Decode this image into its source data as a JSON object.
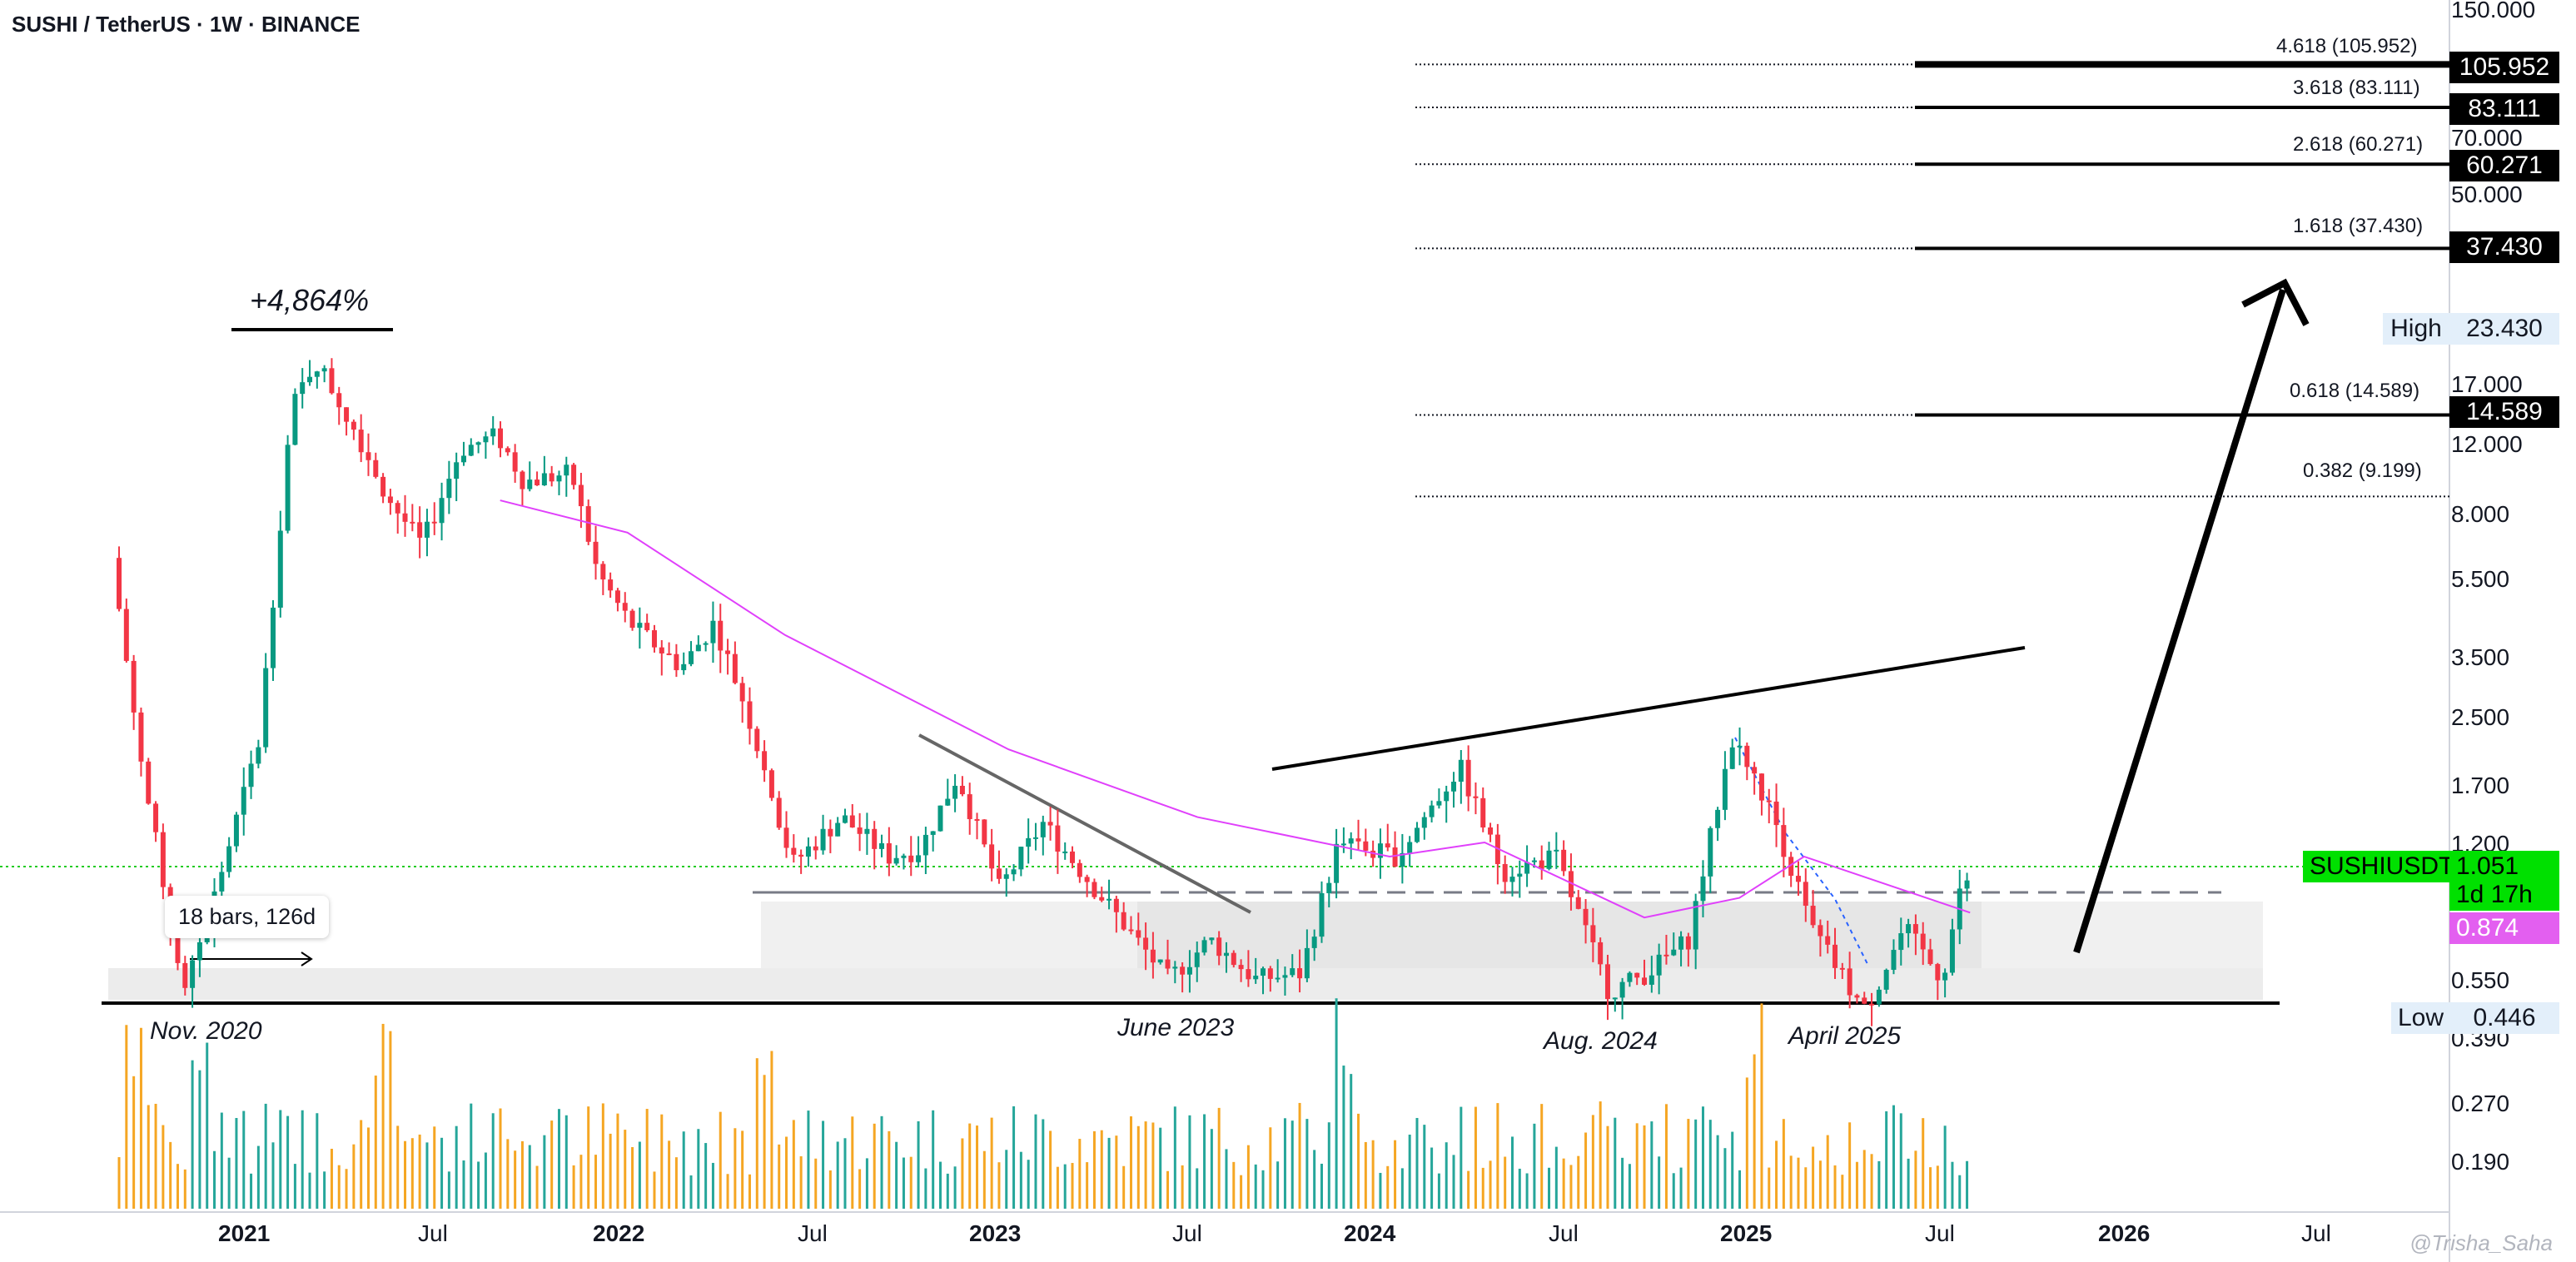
{
  "header": {
    "symbol": "SUSHI / TetherUS · 1W · BINANCE"
  },
  "annotations": {
    "gain": "+4,864%",
    "bars_callout": "18 bars, 126d",
    "nov_2020": "Nov. 2020",
    "june_2023": "June 2023",
    "aug_2024": "Aug. 2024",
    "april_2025": "April 2025"
  },
  "fib_levels": [
    {
      "label": "4.618 (105.952)",
      "tag": "105.952"
    },
    {
      "label": "3.618 (83.111)",
      "tag": "83.111"
    },
    {
      "label": "2.618 (60.271)",
      "tag": "60.271"
    },
    {
      "label": "1.618 (37.430)",
      "tag": "37.430"
    },
    {
      "label": "0.618 (14.589)",
      "tag": "14.589"
    },
    {
      "label": "0.382 (9.199)",
      "tag": ""
    }
  ],
  "price_tags": {
    "high_label": "High",
    "high_value": "23.430",
    "low_label": "Low",
    "low_value": "0.446",
    "symbol_tag": "SUSHIUSDT",
    "last_price": "1.051",
    "countdown": "1d 17h",
    "ma_value": "0.874"
  },
  "watermark": "@Trisha_Saha",
  "colors": {
    "up": "#089981",
    "down": "#f23645",
    "ma": "#e040fb",
    "vol_up": "#26a69a",
    "vol_down": "#f5a623",
    "last_price_bg": "#00e000"
  },
  "chart_data": {
    "type": "candlestick",
    "title": "SUSHI / TetherUS · 1W · BINANCE",
    "scale": "log",
    "y_ticks": [
      "150.000",
      "70.000",
      "50.000",
      "17.000",
      "12.000",
      "8.000",
      "5.500",
      "3.500",
      "2.500",
      "1.700",
      "1.200",
      "0.550",
      "0.390",
      "0.270",
      "0.190"
    ],
    "x_ticks": [
      {
        "label": "2021",
        "bold": true
      },
      {
        "label": "Jul",
        "bold": false
      },
      {
        "label": "2022",
        "bold": true
      },
      {
        "label": "Jul",
        "bold": false
      },
      {
        "label": "2023",
        "bold": true
      },
      {
        "label": "Jul",
        "bold": false
      },
      {
        "label": "2024",
        "bold": true
      },
      {
        "label": "Jul",
        "bold": false
      },
      {
        "label": "2025",
        "bold": true
      },
      {
        "label": "Jul",
        "bold": false
      },
      {
        "label": "2026",
        "bold": true
      },
      {
        "label": "Jul",
        "bold": false
      }
    ],
    "price_path": [
      [
        "2020-09-01",
        6.5
      ],
      [
        "2020-10-01",
        1.9
      ],
      [
        "2020-11-10",
        0.55
      ],
      [
        "2020-12-15",
        1.1
      ],
      [
        "2021-01-20",
        2.3
      ],
      [
        "2021-02-20",
        15.0
      ],
      [
        "2021-03-15",
        20.0
      ],
      [
        "2021-04-25",
        13.0
      ],
      [
        "2021-05-25",
        9.0
      ],
      [
        "2021-06-25",
        7.0
      ],
      [
        "2021-08-01",
        12.0
      ],
      [
        "2021-09-05",
        13.0
      ],
      [
        "2021-10-01",
        10.0
      ],
      [
        "2021-11-15",
        10.5
      ],
      [
        "2021-12-10",
        6.0
      ],
      [
        "2022-01-10",
        4.5
      ],
      [
        "2022-03-01",
        3.5
      ],
      [
        "2022-04-01",
        4.5
      ],
      [
        "2022-05-01",
        2.8
      ],
      [
        "2022-06-15",
        1.15
      ],
      [
        "2022-08-01",
        1.5
      ],
      [
        "2022-09-15",
        1.2
      ],
      [
        "2022-10-15",
        1.25
      ],
      [
        "2022-11-20",
        1.9
      ],
      [
        "2022-12-30",
        1.0
      ],
      [
        "2023-02-10",
        1.45
      ],
      [
        "2023-04-01",
        1.0
      ],
      [
        "2023-06-10",
        0.6
      ],
      [
        "2023-07-20",
        0.75
      ],
      [
        "2023-09-01",
        0.6
      ],
      [
        "2023-10-15",
        0.62
      ],
      [
        "2023-11-20",
        1.3
      ],
      [
        "2024-01-15",
        1.2
      ],
      [
        "2024-03-15",
        2.0
      ],
      [
        "2024-04-25",
        1.1
      ],
      [
        "2024-06-15",
        1.2
      ],
      [
        "2024-08-05",
        0.56
      ],
      [
        "2024-09-10",
        0.62
      ],
      [
        "2024-10-20",
        0.75
      ],
      [
        "2024-12-01",
        2.35
      ],
      [
        "2025-01-10",
        1.5
      ],
      [
        "2025-02-15",
        0.8
      ],
      [
        "2025-04-07",
        0.5
      ],
      [
        "2025-05-15",
        0.8
      ],
      [
        "2025-06-20",
        0.6
      ],
      [
        "2025-07-10",
        1.051
      ]
    ],
    "ma_path": [
      [
        "2021-09-01",
        9.0
      ],
      [
        "2022-01-01",
        7.5
      ],
      [
        "2022-06-01",
        4.2
      ],
      [
        "2023-01-01",
        2.2
      ],
      [
        "2023-07-01",
        1.5
      ],
      [
        "2024-01-01",
        1.2
      ],
      [
        "2024-04-01",
        1.3
      ],
      [
        "2024-09-01",
        0.85
      ],
      [
        "2024-12-01",
        0.95
      ],
      [
        "2025-02-01",
        1.2
      ],
      [
        "2025-07-10",
        0.874
      ]
    ],
    "volume_peak_months": [
      "2020-09",
      "2020-11",
      "2021-05",
      "2022-05",
      "2023-11",
      "2024-12"
    ]
  }
}
